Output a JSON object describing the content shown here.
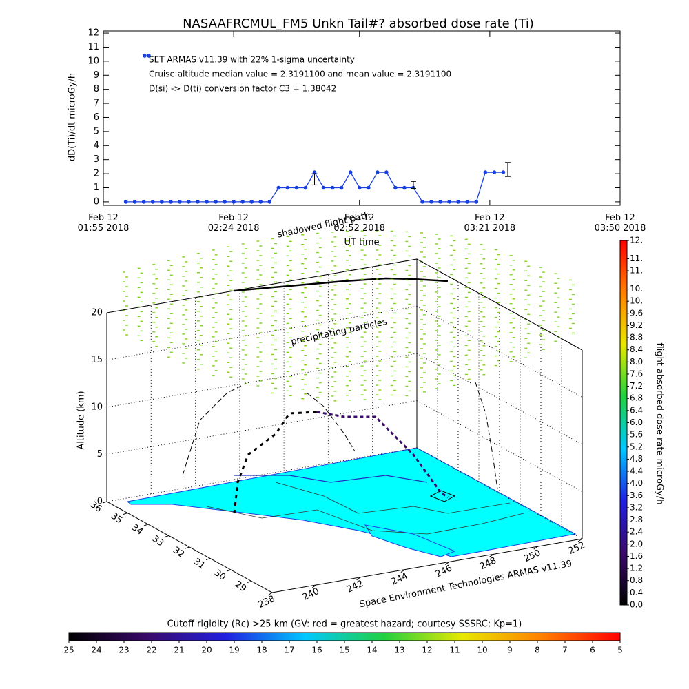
{
  "chart_data": [
    {
      "type": "line",
      "title": "NASAAFRCMUL_FM5 Unkn Tail#? absorbed dose rate (Ti)",
      "ylabel": "dD(Ti)/dt microGy/h",
      "xlabel": "UT time",
      "annotations": [
        "Cruise altitude median value = 2.3191100 and mean value = 2.3191100",
        "D(si) -> D(ti) conversion factor C3 = 1.38042"
      ],
      "xlim": [
        "01:55",
        "03:50"
      ],
      "xticks": [
        {
          "value": "01:55",
          "label": "Feb 12\n01:55 2018"
        },
        {
          "value": "02:24",
          "label": "Feb 12\n02:24 2018"
        },
        {
          "value": "02:52",
          "label": "Feb 12\n02:52 2018"
        },
        {
          "value": "03:21",
          "label": "Feb 12\n03:21 2018"
        },
        {
          "value": "03:50",
          "label": "Feb 12\n03:50 2018"
        }
      ],
      "ylim": [
        -0.25,
        12.15
      ],
      "yticks": [
        0,
        1,
        2,
        3,
        4,
        5,
        6,
        7,
        8,
        9,
        10,
        11,
        12
      ],
      "series": [
        {
          "name": "SET ARMAS v11.39 with 22% 1-sigma uncertainty",
          "color": "#1a3fe0",
          "x": [
            "02:00",
            "02:02",
            "02:04",
            "02:06",
            "02:08",
            "02:10",
            "02:12",
            "02:14",
            "02:16",
            "02:18",
            "02:20",
            "02:22",
            "02:24",
            "02:26",
            "02:28",
            "02:30",
            "02:32",
            "02:34",
            "02:36",
            "02:38",
            "02:40",
            "02:42",
            "02:44",
            "02:46",
            "02:48",
            "02:50",
            "02:52",
            "02:54",
            "02:56",
            "02:58",
            "03:00",
            "03:02",
            "03:04",
            "03:06",
            "03:08",
            "03:10",
            "03:12",
            "03:14",
            "03:16",
            "03:18",
            "03:20",
            "03:22",
            "03:24"
          ],
          "values": [
            0,
            0,
            0,
            0,
            0,
            0,
            0,
            0,
            0,
            0,
            0,
            0,
            0,
            0,
            0,
            0,
            0,
            1.0,
            1.0,
            1.0,
            1.0,
            2.1,
            1.0,
            1.0,
            1.0,
            2.1,
            1.0,
            1.0,
            2.1,
            2.1,
            1.0,
            1.0,
            1.0,
            0,
            0,
            0,
            0,
            0,
            0,
            0,
            2.1,
            2.1,
            2.1
          ]
        }
      ],
      "error_bars": {
        "x": [
          "02:42",
          "03:04",
          "03:25"
        ],
        "values": [
          1.6,
          1.2,
          2.3
        ],
        "errors": [
          0.4,
          0.25,
          0.5
        ]
      }
    },
    {
      "type": "surface3d",
      "zlabel": "Altitude (km)",
      "annotations": [
        "shadowed flight path",
        "precipitating particles"
      ],
      "credit": "Space Environment Technologies ARMAS v11.39",
      "xlim": [
        238,
        252
      ],
      "xticks": [
        238,
        240,
        242,
        244,
        246,
        248,
        250,
        252
      ],
      "ylim": [
        36,
        28
      ],
      "yticks": [
        36,
        35,
        34,
        33,
        32,
        31,
        30,
        29
      ],
      "zlim": [
        0,
        20
      ],
      "zticks": [
        0,
        5,
        10,
        15,
        20
      ]
    },
    {
      "type": "colorbar",
      "orientation": "vertical",
      "label": "flight absorbed dose rate microGy/h",
      "lim": [
        0,
        12
      ],
      "ticks": [
        {
          "value": 0,
          "label": "0.0"
        },
        0.4,
        0.8,
        1.2,
        1.6,
        {
          "value": 2,
          "label": "2.0"
        },
        2.4,
        2.8,
        3.2,
        3.6,
        {
          "value": 4,
          "label": "4.0"
        },
        4.4,
        4.8,
        5.2,
        5.6,
        {
          "value": 6,
          "label": "6.0"
        },
        6.4,
        6.8,
        7.2,
        7.6,
        {
          "value": 8,
          "label": "8.0"
        },
        8.4,
        8.8,
        9.2,
        9.6,
        {
          "value": 10,
          "label": "10."
        },
        {
          "value": 10.4,
          "label": "10."
        },
        {
          "value": 11,
          "label": "11."
        },
        {
          "value": 11.4,
          "label": "11."
        },
        {
          "value": 12,
          "label": "12."
        }
      ],
      "colors": [
        "#000000",
        "#3a0a6a",
        "#2020e0",
        "#00c8ff",
        "#20d040",
        "#e8e800",
        "#ff8000",
        "#ff0000"
      ]
    },
    {
      "type": "colorbar",
      "orientation": "horizontal",
      "label": "Cutoff rigidity (Rc) >25 km (GV: red = greatest hazard; courtesy SSSRC; Kp=1)",
      "lim": [
        25,
        5
      ],
      "ticks": [
        25,
        24,
        23,
        22,
        21,
        20,
        19,
        18,
        17,
        16,
        15,
        14,
        13,
        12,
        11,
        10,
        9,
        8,
        7,
        6,
        5
      ],
      "colors": [
        "#000000",
        "#3a0a6a",
        "#2020e0",
        "#00c8ff",
        "#20d040",
        "#e8e800",
        "#ff8000",
        "#ff0000"
      ]
    }
  ]
}
